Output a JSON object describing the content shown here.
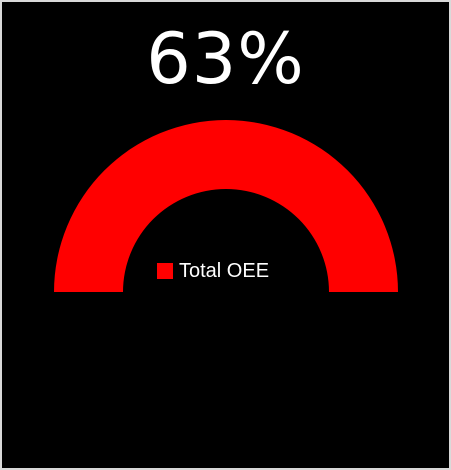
{
  "chart_data": {
    "type": "gauge",
    "value_label": "63%",
    "value": 63,
    "range": [
      0,
      100
    ],
    "series": [
      {
        "name": "Total OEE",
        "color": "#ff0000"
      }
    ],
    "legend_position": "center",
    "background_color": "#000000"
  }
}
